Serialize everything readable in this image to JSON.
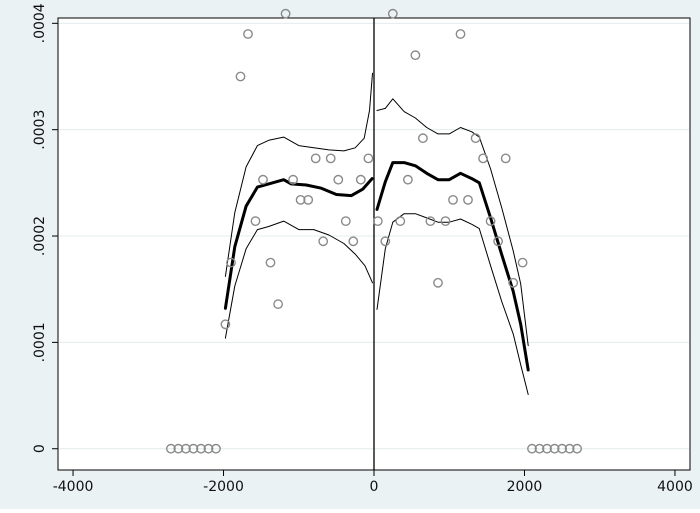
{
  "chart_data": {
    "type": "scatter",
    "title": "",
    "xlabel": "",
    "ylabel": "",
    "xlim": [
      -4200,
      4200
    ],
    "ylim": [
      -2e-05,
      0.000405
    ],
    "xticks": [
      {
        "value": -4000,
        "label": "-4000"
      },
      {
        "value": -2000,
        "label": "-2000"
      },
      {
        "value": 0,
        "label": "0"
      },
      {
        "value": 2000,
        "label": "2000"
      },
      {
        "value": 4000,
        "label": "4000"
      }
    ],
    "yticks": [
      {
        "value": 0,
        "label": "0"
      },
      {
        "value": 0.0001,
        "label": ".0001"
      },
      {
        "value": 0.0002,
        "label": ".0002"
      },
      {
        "value": 0.0003,
        "label": ".0003"
      },
      {
        "value": 0.0004,
        "label": ".0004"
      }
    ],
    "grid": true,
    "vline_x": 0,
    "colors": {
      "background": "#eaf2f3",
      "plot_area": "#ffffff",
      "gridline": "#e3ecee",
      "points": "#8a8a8a",
      "lines": "#000000"
    },
    "scatter": [
      {
        "x": -2700,
        "y": 0
      },
      {
        "x": -2600,
        "y": 0
      },
      {
        "x": -2500,
        "y": 0
      },
      {
        "x": -2400,
        "y": 0
      },
      {
        "x": -2300,
        "y": 0
      },
      {
        "x": -2200,
        "y": 0
      },
      {
        "x": -2100,
        "y": 0
      },
      {
        "x": -1975,
        "y": 0.000117
      },
      {
        "x": -1900,
        "y": 0.000175
      },
      {
        "x": -1775,
        "y": 0.00035
      },
      {
        "x": -1675,
        "y": 0.00039
      },
      {
        "x": -1575,
        "y": 0.000214
      },
      {
        "x": -1475,
        "y": 0.000253
      },
      {
        "x": -1375,
        "y": 0.000175
      },
      {
        "x": -1275,
        "y": 0.000136
      },
      {
        "x": -1175,
        "y": 0.000409
      },
      {
        "x": -1075,
        "y": 0.000253
      },
      {
        "x": -975,
        "y": 0.000234
      },
      {
        "x": -875,
        "y": 0.000234
      },
      {
        "x": -775,
        "y": 0.000273
      },
      {
        "x": -675,
        "y": 0.000195
      },
      {
        "x": -575,
        "y": 0.000273
      },
      {
        "x": -475,
        "y": 0.000253
      },
      {
        "x": -375,
        "y": 0.000214
      },
      {
        "x": -275,
        "y": 0.000195
      },
      {
        "x": -175,
        "y": 0.000253
      },
      {
        "x": -75,
        "y": 0.000273
      },
      {
        "x": 50,
        "y": 0.000214
      },
      {
        "x": 150,
        "y": 0.000195
      },
      {
        "x": 250,
        "y": 0.000409
      },
      {
        "x": 350,
        "y": 0.000214
      },
      {
        "x": 450,
        "y": 0.000253
      },
      {
        "x": 550,
        "y": 0.00037
      },
      {
        "x": 650,
        "y": 0.000292
      },
      {
        "x": 750,
        "y": 0.000214
      },
      {
        "x": 850,
        "y": 0.000156
      },
      {
        "x": 950,
        "y": 0.000214
      },
      {
        "x": 1050,
        "y": 0.000234
      },
      {
        "x": 1150,
        "y": 0.00039
      },
      {
        "x": 1250,
        "y": 0.000234
      },
      {
        "x": 1350,
        "y": 0.000292
      },
      {
        "x": 1450,
        "y": 0.000273
      },
      {
        "x": 1550,
        "y": 0.000214
      },
      {
        "x": 1650,
        "y": 0.000195
      },
      {
        "x": 1750,
        "y": 0.000273
      },
      {
        "x": 1850,
        "y": 0.000156
      },
      {
        "x": 1975,
        "y": 0.000175
      },
      {
        "x": 2100,
        "y": 0
      },
      {
        "x": 2200,
        "y": 0
      },
      {
        "x": 2300,
        "y": 0
      },
      {
        "x": 2400,
        "y": 0
      },
      {
        "x": 2500,
        "y": 0
      },
      {
        "x": 2600,
        "y": 0
      },
      {
        "x": 2700,
        "y": 0
      }
    ],
    "fit_lines": [
      {
        "segment": "left",
        "role": "fit",
        "stroke_width": 3,
        "points": [
          [
            -1975,
            0.000132
          ],
          [
            -1850,
            0.00019
          ],
          [
            -1700,
            0.000228
          ],
          [
            -1550,
            0.000246
          ],
          [
            -1400,
            0.000249
          ],
          [
            -1200,
            0.000253
          ],
          [
            -1100,
            0.000249
          ],
          [
            -900,
            0.000248
          ],
          [
            -700,
            0.000245
          ],
          [
            -500,
            0.000239
          ],
          [
            -300,
            0.000238
          ],
          [
            -150,
            0.000244
          ],
          [
            -25,
            0.000254
          ]
        ]
      },
      {
        "segment": "left",
        "role": "upper",
        "stroke_width": 1,
        "points": [
          [
            -1975,
            0.000162
          ],
          [
            -1850,
            0.000222
          ],
          [
            -1700,
            0.000265
          ],
          [
            -1550,
            0.000285
          ],
          [
            -1400,
            0.00029
          ],
          [
            -1200,
            0.000293
          ],
          [
            -1000,
            0.000285
          ],
          [
            -800,
            0.000283
          ],
          [
            -600,
            0.000281
          ],
          [
            -400,
            0.00028
          ],
          [
            -250,
            0.000283
          ],
          [
            -130,
            0.000292
          ],
          [
            -60,
            0.000318
          ],
          [
            -20,
            0.000353
          ]
        ]
      },
      {
        "segment": "left",
        "role": "lower",
        "stroke_width": 1,
        "points": [
          [
            -1975,
            0.000104
          ],
          [
            -1850,
            0.000153
          ],
          [
            -1700,
            0.000188
          ],
          [
            -1550,
            0.000206
          ],
          [
            -1400,
            0.000209
          ],
          [
            -1200,
            0.000214
          ],
          [
            -1000,
            0.000206
          ],
          [
            -800,
            0.000206
          ],
          [
            -600,
            0.000201
          ],
          [
            -400,
            0.000193
          ],
          [
            -250,
            0.000183
          ],
          [
            -120,
            0.000172
          ],
          [
            -20,
            0.000156
          ]
        ]
      },
      {
        "segment": "right",
        "role": "fit",
        "stroke_width": 3,
        "points": [
          [
            40,
            0.000225
          ],
          [
            150,
            0.000251
          ],
          [
            250,
            0.000269
          ],
          [
            400,
            0.000269
          ],
          [
            550,
            0.000266
          ],
          [
            700,
            0.000259
          ],
          [
            850,
            0.000253
          ],
          [
            1000,
            0.000253
          ],
          [
            1150,
            0.000259
          ],
          [
            1300,
            0.000254
          ],
          [
            1400,
            0.00025
          ],
          [
            1550,
            0.000217
          ],
          [
            1700,
            0.000182
          ],
          [
            1850,
            0.000148
          ],
          [
            1950,
            0.000117
          ],
          [
            2050,
            7.4e-05
          ]
        ]
      },
      {
        "segment": "right",
        "role": "upper",
        "stroke_width": 1,
        "points": [
          [
            40,
            0.000318
          ],
          [
            150,
            0.00032
          ],
          [
            250,
            0.000329
          ],
          [
            400,
            0.000317
          ],
          [
            550,
            0.000311
          ],
          [
            700,
            0.000302
          ],
          [
            850,
            0.000296
          ],
          [
            1000,
            0.000296
          ],
          [
            1150,
            0.000302
          ],
          [
            1300,
            0.000298
          ],
          [
            1400,
            0.000293
          ],
          [
            1550,
            0.000263
          ],
          [
            1700,
            0.000226
          ],
          [
            1850,
            0.000186
          ],
          [
            1950,
            0.000155
          ],
          [
            2050,
            9.7e-05
          ]
        ]
      },
      {
        "segment": "right",
        "role": "lower",
        "stroke_width": 1,
        "points": [
          [
            40,
            0.000131
          ],
          [
            150,
            0.000188
          ],
          [
            250,
            0.000213
          ],
          [
            400,
            0.000221
          ],
          [
            550,
            0.000221
          ],
          [
            700,
            0.000217
          ],
          [
            850,
            0.000213
          ],
          [
            1000,
            0.000213
          ],
          [
            1150,
            0.000216
          ],
          [
            1300,
            0.000211
          ],
          [
            1400,
            0.000207
          ],
          [
            1550,
            0.000172
          ],
          [
            1700,
            0.000138
          ],
          [
            1850,
            0.000108
          ],
          [
            1950,
            7.9e-05
          ],
          [
            2050,
            5.1e-05
          ]
        ]
      }
    ]
  }
}
